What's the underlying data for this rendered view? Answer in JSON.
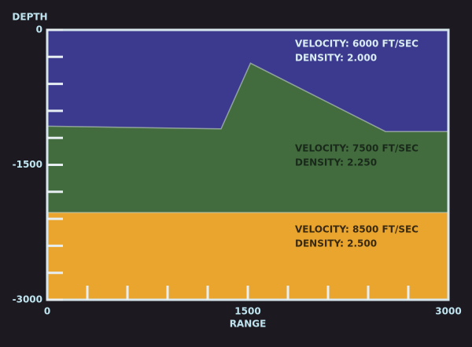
{
  "chart_data": {
    "type": "layers",
    "x_label": "RANGE",
    "y_label": "DEPTH",
    "xlim": [
      0,
      3000
    ],
    "ylim": [
      -3000,
      0
    ],
    "xticks": [
      0,
      1500,
      3000
    ],
    "yticks": [
      -3000,
      -1500,
      0
    ],
    "minor_xticks": [
      300,
      600,
      900,
      1200,
      1500,
      1800,
      2100,
      2400,
      2700
    ],
    "minor_yticks": [
      -2700,
      -2400,
      -2100,
      -1800,
      -1200,
      -900,
      -600,
      -300
    ],
    "boundaries": [
      {
        "x": [
          0,
          1300,
          1520,
          2530,
          3000
        ],
        "values": [
          -1070,
          -1100,
          -370,
          -1130,
          -1130
        ]
      },
      {
        "x": [
          0,
          3000
        ],
        "values": [
          -2030,
          -2030
        ]
      }
    ],
    "layers": [
      {
        "color": "#3c3a8e",
        "text_color": "#d8ecf2",
        "velocity": "VELOCITY: 6000 FT/SEC",
        "density": "DENSITY: 2.000"
      },
      {
        "color": "#426b3e",
        "text_color": "#1a2a1a",
        "velocity": "VELOCITY: 7500 FT/SEC",
        "density": "DENSITY: 2.250"
      },
      {
        "color": "#eaa52e",
        "text_color": "#3a2a10",
        "velocity": "VELOCITY: 8500 FT/SEC",
        "density": "DENSITY: 2.500"
      }
    ]
  }
}
